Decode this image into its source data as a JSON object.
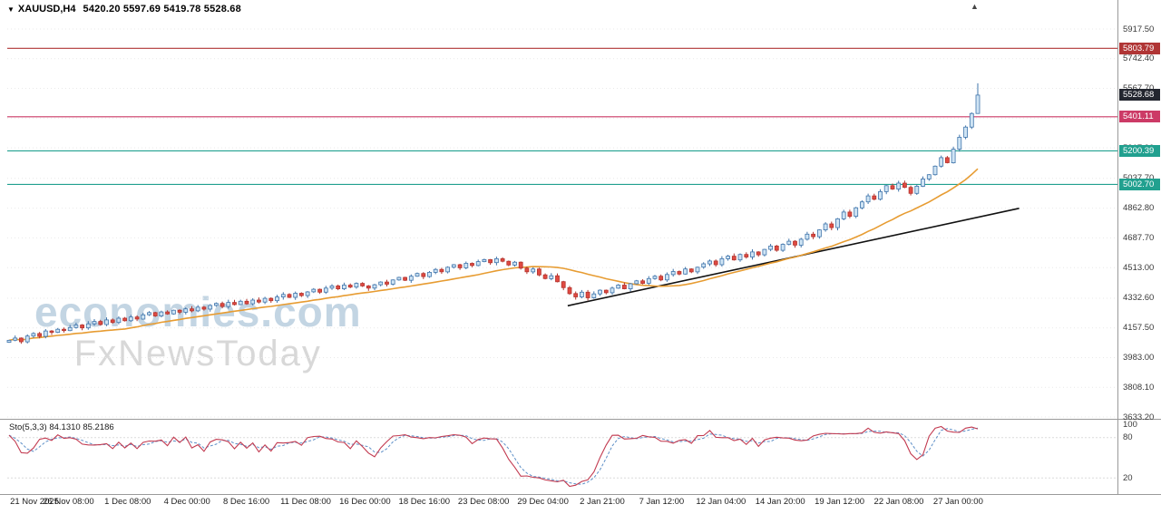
{
  "header": {
    "dropdown_icon": "▼",
    "symbol": "XAUUSD,H4",
    "ohlc": "5420.20 5597.69 5419.78 5528.68",
    "shift_marker": "▲"
  },
  "watermark": {
    "line1": "economies.com",
    "line2": "FxNewsToday"
  },
  "chart_data": {
    "type": "candlestick",
    "title": "XAUUSD,H4",
    "y_range": {
      "min": 3633.2,
      "max": 5917.5
    },
    "x_labels": [
      "21 Nov 2025",
      "26 Nov 08:00",
      "1 Dec 08:00",
      "4 Dec 00:00",
      "8 Dec 16:00",
      "11 Dec 08:00",
      "16 Dec 00:00",
      "18 Dec 16:00",
      "23 Dec 08:00",
      "29 Dec 04:00",
      "2 Jan 21:00",
      "7 Jan 12:00",
      "12 Jan 04:00",
      "14 Jan 20:00",
      "19 Jan 12:00",
      "22 Jan 08:00",
      "27 Jan 00:00"
    ],
    "y_ticks": [
      "5917.50",
      "5742.40",
      "5567.70",
      "5392.90",
      "5217.90",
      "5037.70",
      "4862.80",
      "4687.70",
      "4513.00",
      "4332.60",
      "4157.50",
      "3983.00",
      "3808.10",
      "3633.20"
    ],
    "closes": [
      4085,
      4098,
      4076,
      4110,
      4125,
      4108,
      4140,
      4132,
      4150,
      4142,
      4160,
      4175,
      4158,
      4182,
      4196,
      4178,
      4205,
      4190,
      4215,
      4200,
      4222,
      4210,
      4235,
      4248,
      4228,
      4252,
      4240,
      4262,
      4250,
      4270,
      4258,
      4280,
      4268,
      4290,
      4302,
      4284,
      4308,
      4295,
      4315,
      4300,
      4322,
      4310,
      4332,
      4318,
      4340,
      4355,
      4338,
      4362,
      4348,
      4370,
      4385,
      4368,
      4392,
      4405,
      4388,
      4410,
      4398,
      4420,
      4405,
      4392,
      4412,
      4428,
      4415,
      4440,
      4455,
      4438,
      4462,
      4478,
      4460,
      4485,
      4502,
      4488,
      4515,
      4530,
      4512,
      4538,
      4525,
      4548,
      4560,
      4542,
      4565,
      4550,
      4528,
      4545,
      4510,
      4488,
      4505,
      4470,
      4448,
      4465,
      4430,
      4395,
      4360,
      4340,
      4368,
      4335,
      4358,
      4380,
      4365,
      4392,
      4410,
      4388,
      4418,
      4435,
      4420,
      4448,
      4462,
      4440,
      4472,
      4490,
      4475,
      4505,
      4488,
      4515,
      4535,
      4552,
      4530,
      4565,
      4580,
      4558,
      4590,
      4575,
      4605,
      4588,
      4620,
      4640,
      4615,
      4650,
      4668,
      4645,
      4680,
      4710,
      4695,
      4735,
      4770,
      4748,
      4800,
      4840,
      4815,
      4865,
      4900,
      4935,
      4915,
      4960,
      4995,
      4975,
      5010,
      4985,
      4950,
      4992,
      5035,
      5060,
      5110,
      5160,
      5130,
      5210,
      5280,
      5340,
      5420.2,
      5528.68
    ],
    "last_candle_ohlc": [
      5420.2,
      5597.69,
      5419.78,
      5528.68
    ],
    "levels": [
      {
        "value": "5803.79",
        "price": 5803.79,
        "color": "#b03535"
      },
      {
        "value": "5401.11",
        "price": 5401.11,
        "color": "#cc3a66"
      },
      {
        "value": "5200.39",
        "price": 5200.39,
        "color": "#21a08f"
      },
      {
        "value": "5002.70",
        "price": 5002.7,
        "color": "#21a08f"
      }
    ],
    "current_price": {
      "value": "5528.68",
      "price": 5528.68,
      "color": "#23262f"
    },
    "ma": {
      "color": "#e79c32",
      "window": 20
    },
    "trendline": {
      "x1_frac": 0.508,
      "price1": 4288,
      "x2_frac": 0.912,
      "price2": 4862,
      "color": "#111111"
    },
    "candle_colors": {
      "bull_fill": "#cfe4f4",
      "bull_stroke": "#3f74ab",
      "bear_fill": "#e04a42",
      "bear_stroke": "#b3342e"
    },
    "stochastic": {
      "label": "Sto(5,3,3) 84.1310 85.2186",
      "params": "5,3,3",
      "k_value": "84.1310",
      "d_value": "85.2186",
      "scale_labels": [
        "100",
        "80",
        "20"
      ],
      "scale_values": [
        100,
        80,
        20
      ],
      "k_color": "#c23a50",
      "d_color": "#5d8fc7"
    }
  }
}
